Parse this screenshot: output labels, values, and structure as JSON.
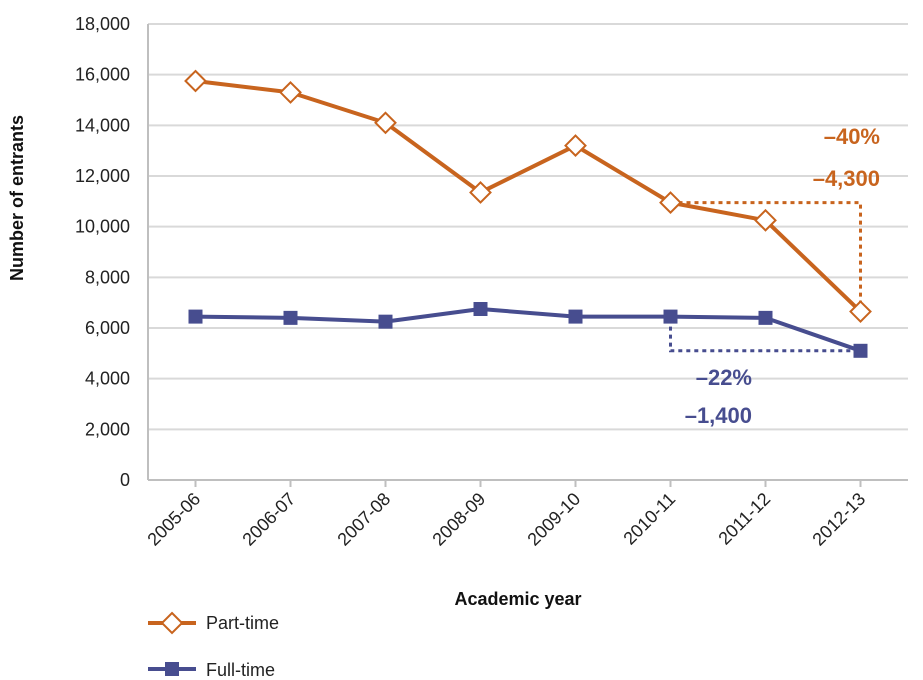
{
  "chart_data": {
    "type": "line",
    "xlabel": "Academic year",
    "ylabel": "Number of entrants",
    "ylim": [
      0,
      18000
    ],
    "yticks": [
      0,
      2000,
      4000,
      6000,
      8000,
      10000,
      12000,
      14000,
      16000,
      18000
    ],
    "ytick_labels": [
      "0",
      "2,000",
      "4,000",
      "6,000",
      "8,000",
      "10,000",
      "12,000",
      "14,000",
      "16,000",
      "18,000"
    ],
    "categories": [
      "2005-06",
      "2006-07",
      "2007-08",
      "2008-09",
      "2009-10",
      "2010-11",
      "2011-12",
      "2012-13"
    ],
    "grid": "horizontal",
    "legend_position": "bottom-left",
    "series": [
      {
        "name": "Part-time",
        "color": "#C8641E",
        "marker": "diamond-open",
        "values": [
          15750,
          15300,
          14100,
          11350,
          13200,
          10950,
          10250,
          6650
        ]
      },
      {
        "name": "Full-time",
        "color": "#474D8F",
        "marker": "square-filled",
        "values": [
          6450,
          6400,
          6250,
          6750,
          6450,
          6450,
          6400,
          5100
        ]
      }
    ],
    "annotations": [
      {
        "series": "Part-time",
        "from": "2010-11",
        "to": "2012-13",
        "percent": "–40%",
        "change": "–4,300"
      },
      {
        "series": "Full-time",
        "from": "2010-11",
        "to": "2012-13",
        "percent": "–22%",
        "change": "–1,400"
      }
    ]
  }
}
